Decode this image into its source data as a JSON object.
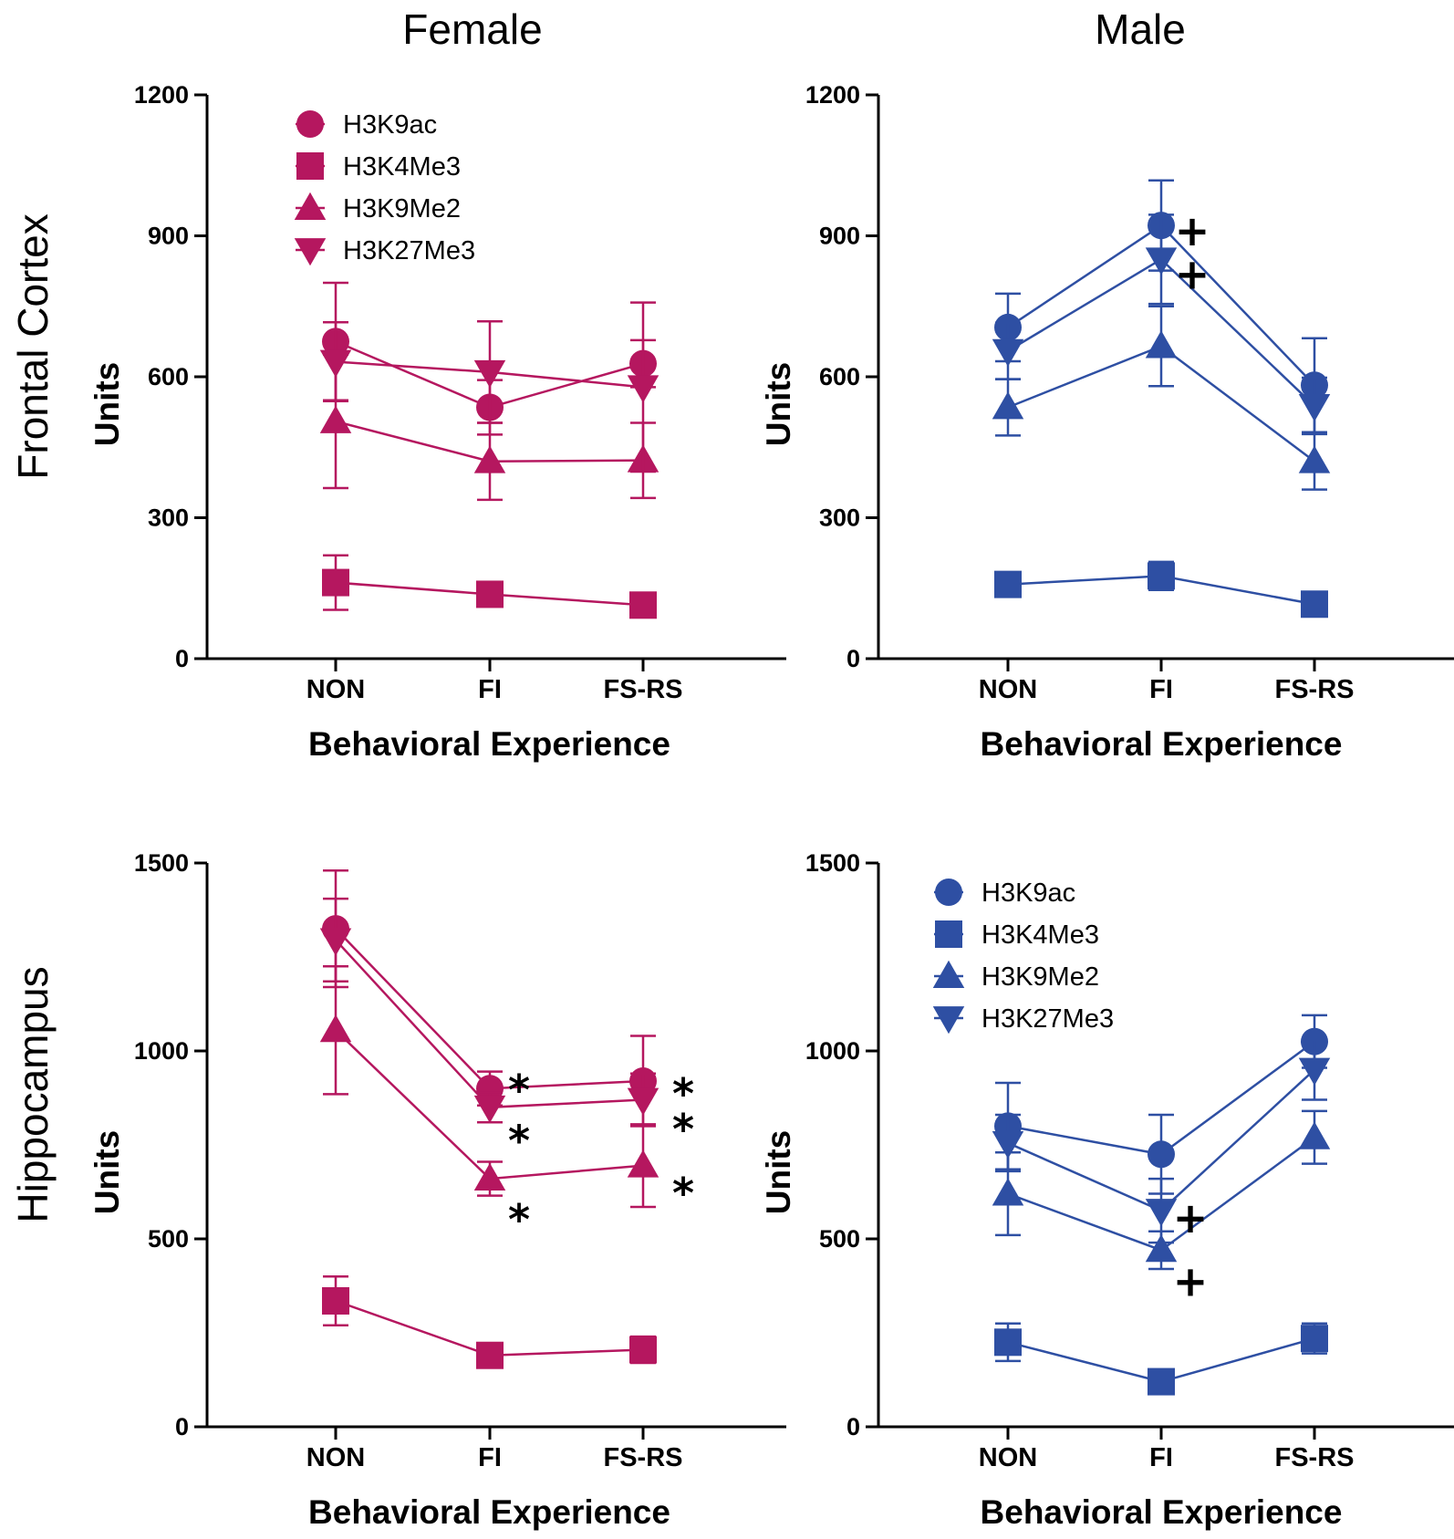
{
  "figure": {
    "columns": [
      "Female",
      "Male"
    ],
    "rows": [
      "Frontal Cortex",
      "Hippocampus"
    ],
    "colors": {
      "female": "#b5175f",
      "male": "#2e4fa3"
    }
  },
  "chart_data": [
    {
      "type": "line",
      "id": "fc-female",
      "row": "Frontal Cortex",
      "column": "Female",
      "categories": [
        "NON",
        "FI",
        "FS-RS"
      ],
      "xlabel": "Behavioral Experience",
      "ylabel": "Units",
      "ylim": [
        0,
        1200
      ],
      "yticks": [
        0,
        300,
        600,
        900,
        1200
      ],
      "color": "#b5175f",
      "legend": {
        "show": true,
        "position": "top-left"
      },
      "series": [
        {
          "name": "H3K9ac",
          "marker": "circle",
          "values": [
            675,
            535,
            628
          ],
          "errors": [
            125,
            58,
            50
          ]
        },
        {
          "name": "H3K4Me3",
          "marker": "square",
          "values": [
            162,
            137,
            114
          ],
          "errors": [
            58,
            10,
            10
          ]
        },
        {
          "name": "H3K9Me2",
          "marker": "triangle-up",
          "values": [
            505,
            420,
            422
          ],
          "errors": [
            142,
            82,
            80
          ]
        },
        {
          "name": "H3K27Me3",
          "marker": "triangle-down",
          "values": [
            632,
            610,
            578
          ],
          "errors": [
            84,
            108,
            180
          ]
        }
      ],
      "annotations": []
    },
    {
      "type": "line",
      "id": "fc-male",
      "row": "Frontal Cortex",
      "column": "Male",
      "categories": [
        "NON",
        "FI",
        "FS-RS"
      ],
      "xlabel": "Behavioral Experience",
      "ylabel": "Units",
      "ylim": [
        0,
        1200
      ],
      "yticks": [
        0,
        300,
        600,
        900,
        1200
      ],
      "color": "#2e4fa3",
      "legend": {
        "show": false
      },
      "series": [
        {
          "name": "H3K9ac",
          "marker": "circle",
          "values": [
            705,
            922,
            582
          ],
          "errors": [
            72,
            96,
            100
          ]
        },
        {
          "name": "H3K4Me3",
          "marker": "square",
          "values": [
            158,
            176,
            116
          ],
          "errors": [
            10,
            30,
            10
          ]
        },
        {
          "name": "H3K9Me2",
          "marker": "triangle-up",
          "values": [
            535,
            665,
            420
          ],
          "errors": [
            60,
            85,
            60
          ]
        },
        {
          "name": "H3K27Me3",
          "marker": "triangle-down",
          "values": [
            655,
            850,
            538
          ],
          "errors": [
            60,
            95,
            60
          ]
        }
      ],
      "annotations": [
        {
          "text": "+",
          "category": "FI",
          "y": 922
        },
        {
          "text": "+",
          "category": "FI",
          "y": 842
        }
      ]
    },
    {
      "type": "line",
      "id": "hc-female",
      "row": "Hippocampus",
      "column": "Female",
      "categories": [
        "NON",
        "FI",
        "FS-RS"
      ],
      "xlabel": "Behavioral Experience",
      "ylabel": "Units",
      "ylim": [
        0,
        1500
      ],
      "yticks": [
        0,
        500,
        1000,
        1500
      ],
      "color": "#b5175f",
      "legend": {
        "show": false
      },
      "series": [
        {
          "name": "H3K9ac",
          "marker": "circle",
          "values": [
            1325,
            900,
            920
          ],
          "errors": [
            155,
            45,
            120
          ]
        },
        {
          "name": "H3K4Me3",
          "marker": "square",
          "values": [
            335,
            190,
            205
          ],
          "errors": [
            65,
            10,
            35
          ]
        },
        {
          "name": "H3K9Me2",
          "marker": "triangle-up",
          "values": [
            1055,
            660,
            695
          ],
          "errors": [
            170,
            45,
            110
          ]
        },
        {
          "name": "H3K27Me3",
          "marker": "triangle-down",
          "values": [
            1295,
            850,
            870
          ],
          "errors": [
            110,
            40,
            70
          ]
        }
      ],
      "annotations": [
        {
          "text": "*",
          "category": "FI",
          "y": 905
        },
        {
          "text": "*",
          "category": "FI",
          "y": 790
        },
        {
          "text": "*",
          "category": "FI",
          "y": 595
        },
        {
          "text": "*",
          "category": "FS-RS",
          "y": 900
        },
        {
          "text": "*",
          "category": "FS-RS",
          "y": 820
        },
        {
          "text": "*",
          "category": "FS-RS",
          "y": 665
        }
      ]
    },
    {
      "type": "line",
      "id": "hc-male",
      "row": "Hippocampus",
      "column": "Male",
      "categories": [
        "NON",
        "FI",
        "FS-RS"
      ],
      "xlabel": "Behavioral Experience",
      "ylabel": "Units",
      "ylim": [
        0,
        1500
      ],
      "yticks": [
        0,
        500,
        1000,
        1500
      ],
      "color": "#2e4fa3",
      "legend": {
        "show": true,
        "position": "top-left"
      },
      "series": [
        {
          "name": "H3K9ac",
          "marker": "circle",
          "values": [
            800,
            725,
            1025
          ],
          "errors": [
            115,
            105,
            70
          ]
        },
        {
          "name": "H3K4Me3",
          "marker": "square",
          "values": [
            225,
            120,
            235
          ],
          "errors": [
            50,
            10,
            40
          ]
        },
        {
          "name": "H3K9Me2",
          "marker": "triangle-up",
          "values": [
            620,
            470,
            770
          ],
          "errors": [
            110,
            50,
            70
          ]
        },
        {
          "name": "H3K27Me3",
          "marker": "triangle-down",
          "values": [
            755,
            575,
            950
          ],
          "errors": [
            75,
            85,
            80
          ]
        }
      ],
      "annotations": [
        {
          "text": "+",
          "category": "FI",
          "y": 580
        },
        {
          "text": "+",
          "category": "FI",
          "y": 445
        }
      ]
    }
  ]
}
